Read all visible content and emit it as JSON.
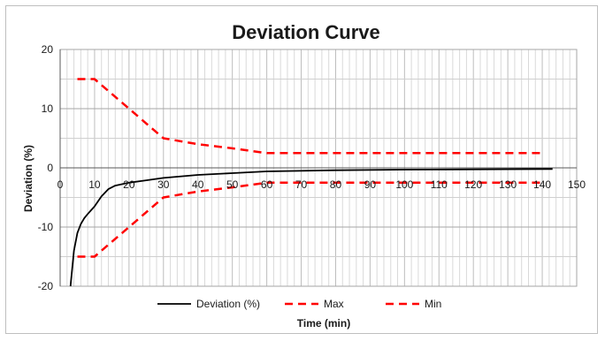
{
  "chart_data": {
    "type": "line",
    "title": "Deviation Curve",
    "xlabel": "Time (min)",
    "ylabel": "Deviation (%)",
    "xlim": [
      0,
      150
    ],
    "ylim": [
      -20,
      20
    ],
    "x_ticks": [
      0,
      10,
      20,
      30,
      40,
      50,
      60,
      70,
      80,
      90,
      100,
      110,
      120,
      130,
      140,
      150
    ],
    "y_ticks": [
      -20,
      -10,
      0,
      10,
      20
    ],
    "x_minor_step": 2,
    "y_minor_step": 5,
    "grid": true,
    "legend_position": "bottom",
    "series": [
      {
        "name": "Deviation (%)",
        "color": "#000000",
        "style": "solid",
        "x": [
          3,
          4,
          5,
          6,
          7,
          8,
          10,
          12,
          14,
          16,
          20,
          25,
          30,
          40,
          50,
          60,
          80,
          100,
          120,
          143
        ],
        "y": [
          -20,
          -14,
          -11,
          -9.5,
          -8.5,
          -7.8,
          -6.5,
          -4.8,
          -3.6,
          -3.0,
          -2.5,
          -2.1,
          -1.7,
          -1.2,
          -0.9,
          -0.6,
          -0.4,
          -0.3,
          -0.25,
          -0.2
        ]
      },
      {
        "name": "Max",
        "color": "#ff0000",
        "style": "dashed",
        "x": [
          5,
          10,
          20,
          30,
          40,
          50,
          60,
          70,
          80,
          90,
          100,
          110,
          120,
          130,
          140
        ],
        "y": [
          15,
          15,
          10,
          5,
          4,
          3.3,
          2.5,
          2.5,
          2.5,
          2.5,
          2.5,
          2.5,
          2.5,
          2.5,
          2.5
        ]
      },
      {
        "name": "Min",
        "color": "#ff0000",
        "style": "dashed",
        "x": [
          5,
          10,
          20,
          30,
          40,
          50,
          60,
          70,
          80,
          90,
          100,
          110,
          120,
          130,
          140
        ],
        "y": [
          -15,
          -15,
          -10,
          -5,
          -4,
          -3.3,
          -2.5,
          -2.5,
          -2.5,
          -2.5,
          -2.5,
          -2.5,
          -2.5,
          -2.5,
          -2.5
        ]
      }
    ]
  }
}
